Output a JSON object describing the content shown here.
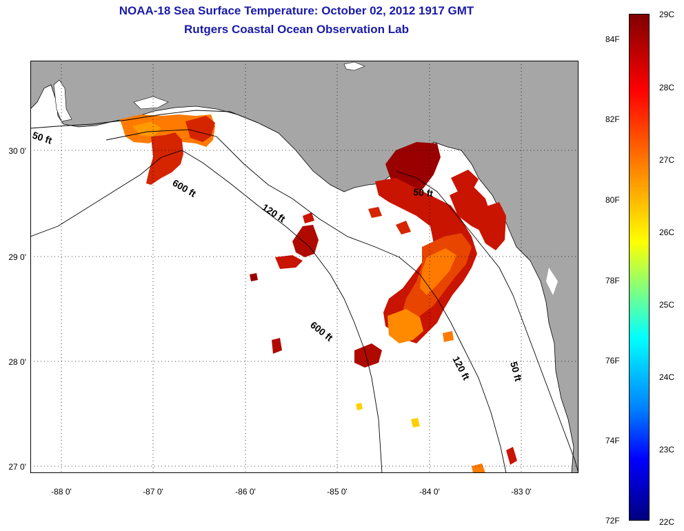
{
  "title_line1": "NOAA-18 Sea Surface Temperature:  October 02, 2012 1917 GMT",
  "title_line2": "Rutgers Coastal Ocean Observation Lab",
  "x_ticks": [
    "-88 0'",
    "-87 0'",
    "-86 0'",
    "-85 0'",
    "-84 0'",
    "-83 0'"
  ],
  "y_ticks": [
    "30 0'",
    "29 0'",
    "28 0'",
    "27 0'"
  ],
  "colorbar": {
    "fahrenheit": [
      "84F",
      "82F",
      "80F",
      "78F",
      "76F",
      "74F",
      "72F"
    ],
    "celsius": [
      "29C",
      "28C",
      "27C",
      "26C",
      "25C",
      "24C",
      "23C",
      "22C"
    ]
  },
  "contours": {
    "label_50_west": "50 ft",
    "label_600_west": "600 ft",
    "label_120_mid": "120 ft",
    "label_50_mid": "50 ft",
    "label_600_south": "600 ft",
    "label_120_south": "120 ft",
    "label_50_south": "50 ft"
  },
  "colors": {
    "land": "#a6a6a6",
    "title": "#1a1aa8",
    "sst_dark": "#9a0000",
    "sst_mid": "#d42400",
    "sst_orange": "#ff7a00"
  }
}
